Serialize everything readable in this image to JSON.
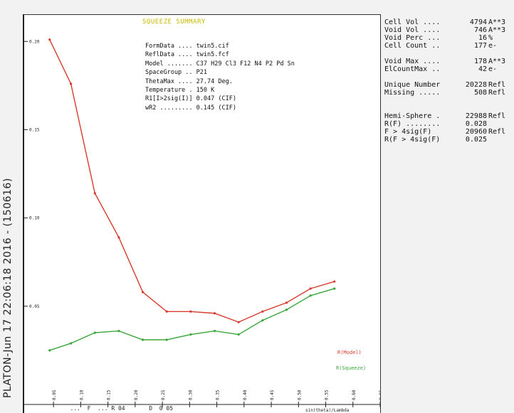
{
  "side_label": "PLATON-Jun 17 22:06:18 2016  -  (150616)",
  "title": "SQUEEZE SUMMARY",
  "info_lines": [
    "FormData .... twin5.cif",
    "ReflData .... twin5.fcf",
    "Model ....... C37 H29 Cl3 F12 N4 P2 Pd Sn",
    "SpaceGroup .. P21",
    "ThetaMax .... 27.74 Deg.",
    "Temperature . 150 K",
    "R1[I>2sig(I)] 0.047 (CIF)",
    "wR2 ......... 0.145 (CIF)"
  ],
  "stats": [
    {
      "label": "Cell Vol ....",
      "value": "4794",
      "unit": "A**3"
    },
    {
      "label": "Void Vol ....",
      "value": "746",
      "unit": "A**3"
    },
    {
      "label": "Void Perc ...",
      "value": "16",
      "unit": "%"
    },
    {
      "label": "Cell Count ..",
      "value": "177",
      "unit": "e-"
    },
    {
      "gap": true
    },
    {
      "label": "Void Max ....",
      "value": "178",
      "unit": "A**3"
    },
    {
      "label": "ElCountMax ..",
      "value": "42",
      "unit": "e-"
    },
    {
      "gap": true
    },
    {
      "label": "Unique Number",
      "value": "20228",
      "unit": "Refl"
    },
    {
      "label": "Missing .....",
      "value": "508",
      "unit": "Refl"
    },
    {
      "gap": true
    },
    {
      "gap": true
    },
    {
      "label": "Hemi-Sphere .",
      "value": "22988",
      "unit": "Refl"
    },
    {
      "label": "R(F) ........",
      "value": "0.028",
      "unit": ""
    },
    {
      "label": "F > 4sig(F)",
      "value": "20960",
      "unit": "Refl"
    },
    {
      "label": "R(F > 4sig(F)",
      "value": "0.025",
      "unit": ""
    }
  ],
  "bottom_text": "        ...  F  ... R 04       D  0 05",
  "colors": {
    "model": "#d63c2e",
    "squeeze": "#3aa63a"
  },
  "chart_data": {
    "type": "line",
    "xlabel": "sin(theta)/Lambda",
    "ylabel": "",
    "xlim": [
      0.025,
      0.65
    ],
    "ylim": [
      0.0,
      0.215
    ],
    "x_ticks": [
      "0.05",
      "0.10",
      "0.15",
      "0.20",
      "0.25",
      "0.30",
      "0.35",
      "0.40",
      "0.45",
      "0.50",
      "0.55",
      "0.60",
      "0.65"
    ],
    "y_ticks": [
      "0.05",
      "0.10",
      "0.15",
      "0.20"
    ],
    "x": [
      0.043,
      0.082,
      0.126,
      0.17,
      0.214,
      0.258,
      0.302,
      0.346,
      0.39,
      0.434,
      0.478,
      0.522,
      0.566
    ],
    "series": [
      {
        "name": "R(Model)",
        "values": [
          0.201,
          0.176,
          0.114,
          0.089,
          0.058,
          0.047,
          0.047,
          0.046,
          0.041,
          0.047,
          0.052,
          0.06,
          0.064
        ]
      },
      {
        "name": "R(Squeeze)",
        "values": [
          0.025,
          0.029,
          0.035,
          0.036,
          0.031,
          0.031,
          0.034,
          0.036,
          0.034,
          0.042,
          0.048,
          0.056,
          0.06
        ]
      }
    ],
    "grid": false,
    "legend": "bottom-right"
  }
}
